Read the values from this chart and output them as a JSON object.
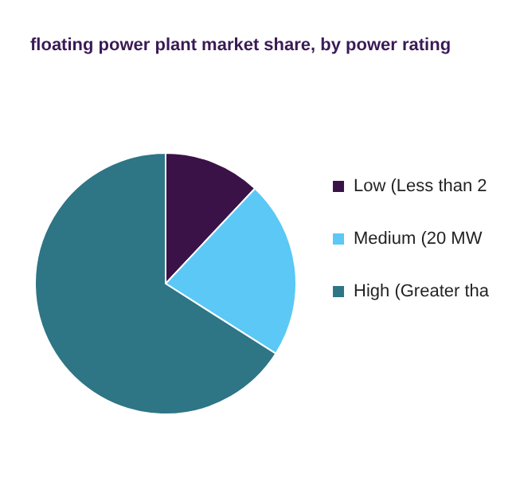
{
  "chart_data": {
    "type": "pie",
    "title": "floating power plant market share, by power rating",
    "categories": [
      "Low (Less than 2",
      "Medium (20 MW",
      "High (Greater tha"
    ],
    "values": [
      12,
      22,
      66
    ],
    "colors": [
      "#3a1248",
      "#5bc8f5",
      "#2e7585"
    ],
    "legend": "right"
  }
}
